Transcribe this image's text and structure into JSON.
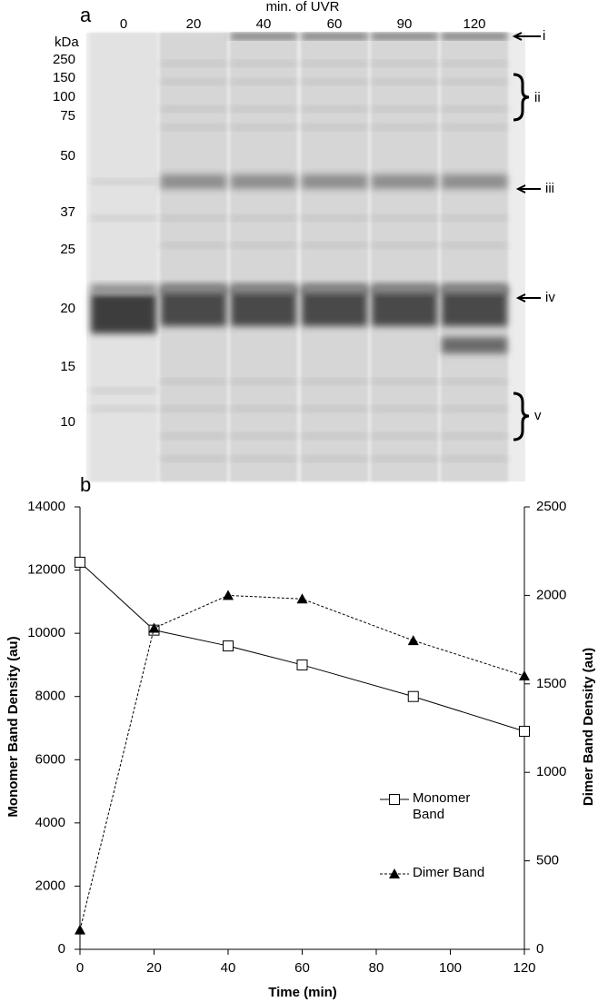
{
  "gel": {
    "panel_label": "a",
    "lane_axis_title": "min. of UVR",
    "lanes": [
      "0",
      "20",
      "40",
      "60",
      "90",
      "120"
    ],
    "marker_unit": "kDa",
    "markers": [
      "250",
      "150",
      "100",
      "75",
      "50",
      "37",
      "25",
      "20",
      "15",
      "10"
    ],
    "band_labels": [
      "i",
      "ii",
      "iii",
      "iv",
      "v"
    ]
  },
  "chart_data": {
    "type": "line",
    "panel_label": "b",
    "x_label": "Time (min)",
    "y_label": "Monomer Band Density (au)",
    "y2_label": "Dimer Band Density (au)",
    "x": [
      0,
      20,
      40,
      60,
      90,
      120
    ],
    "xlim": [
      0,
      120
    ],
    "xticks": [
      0,
      20,
      40,
      60,
      80,
      100,
      120
    ],
    "ylim": [
      0,
      14000
    ],
    "yticks": [
      0,
      2000,
      4000,
      6000,
      8000,
      10000,
      12000,
      14000
    ],
    "y2lim": [
      0,
      2500
    ],
    "y2ticks": [
      0,
      500,
      1000,
      1500,
      2000,
      2500
    ],
    "grid": false,
    "series": [
      {
        "name": "Monomer Band",
        "color": "#000000",
        "marker": "square-open",
        "line_style": "solid",
        "axis": "y",
        "values": [
          12250,
          10100,
          9600,
          9000,
          8000,
          6900
        ]
      },
      {
        "name": "Dimer Band",
        "color": "#000000",
        "marker": "triangle",
        "line_style": "dashed",
        "axis": "y2",
        "values": [
          110,
          1815,
          2000,
          1980,
          1745,
          1545
        ]
      }
    ]
  }
}
